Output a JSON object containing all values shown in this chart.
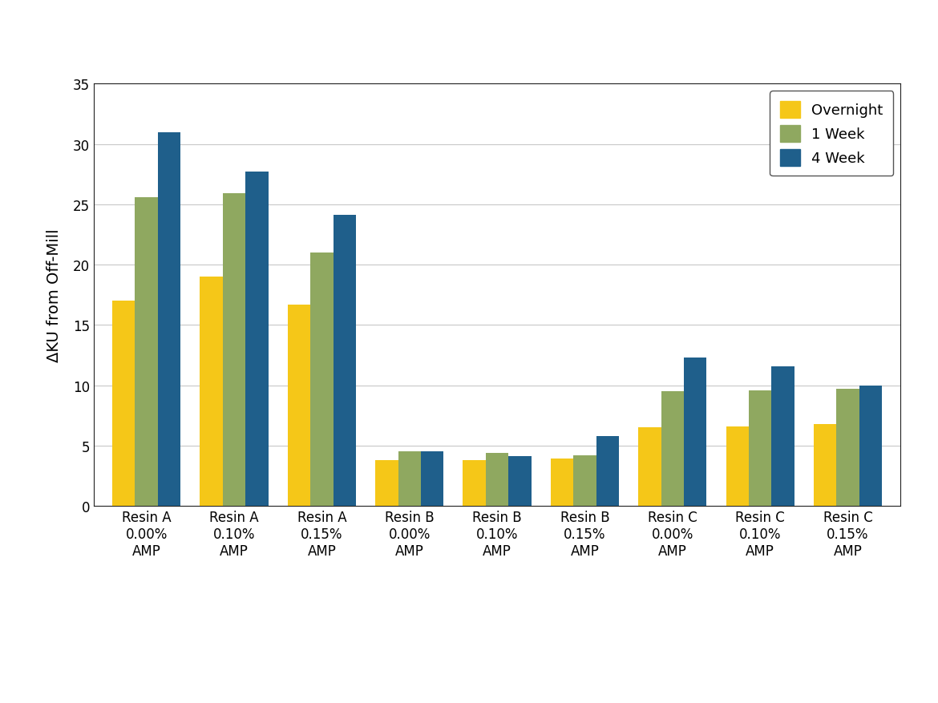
{
  "categories": [
    "Resin A\n0.00%\nAMP",
    "Resin A\n0.10%\nAMP",
    "Resin A\n0.15%\nAMP",
    "Resin B\n0.00%\nAMP",
    "Resin B\n0.10%\nAMP",
    "Resin B\n0.15%\nAMP",
    "Resin C\n0.00%\nAMP",
    "Resin C\n0.10%\nAMP",
    "Resin C\n0.15%\nAMP"
  ],
  "overnight": [
    17.0,
    19.0,
    16.7,
    3.8,
    3.8,
    3.9,
    6.5,
    6.6,
    6.8
  ],
  "one_week": [
    25.6,
    25.9,
    21.0,
    4.5,
    4.4,
    4.2,
    9.5,
    9.6,
    9.7
  ],
  "four_week": [
    31.0,
    27.7,
    24.1,
    4.5,
    4.1,
    5.8,
    12.3,
    11.6,
    10.0
  ],
  "color_overnight": "#F5C718",
  "color_one_week": "#8FA860",
  "color_four_week": "#1F5F8B",
  "ylabel": "ΔKU from Off-Mill",
  "ylim": [
    0,
    35
  ],
  "yticks": [
    0,
    5,
    10,
    15,
    20,
    25,
    30,
    35
  ],
  "legend_labels": [
    "Overnight",
    "1 Week",
    "4 Week"
  ],
  "bar_width": 0.26,
  "background_color": "#ffffff",
  "grid_color": "#c8c8c8",
  "axis_fontsize": 14,
  "tick_fontsize": 12,
  "legend_fontsize": 13,
  "spine_color": "#222222"
}
